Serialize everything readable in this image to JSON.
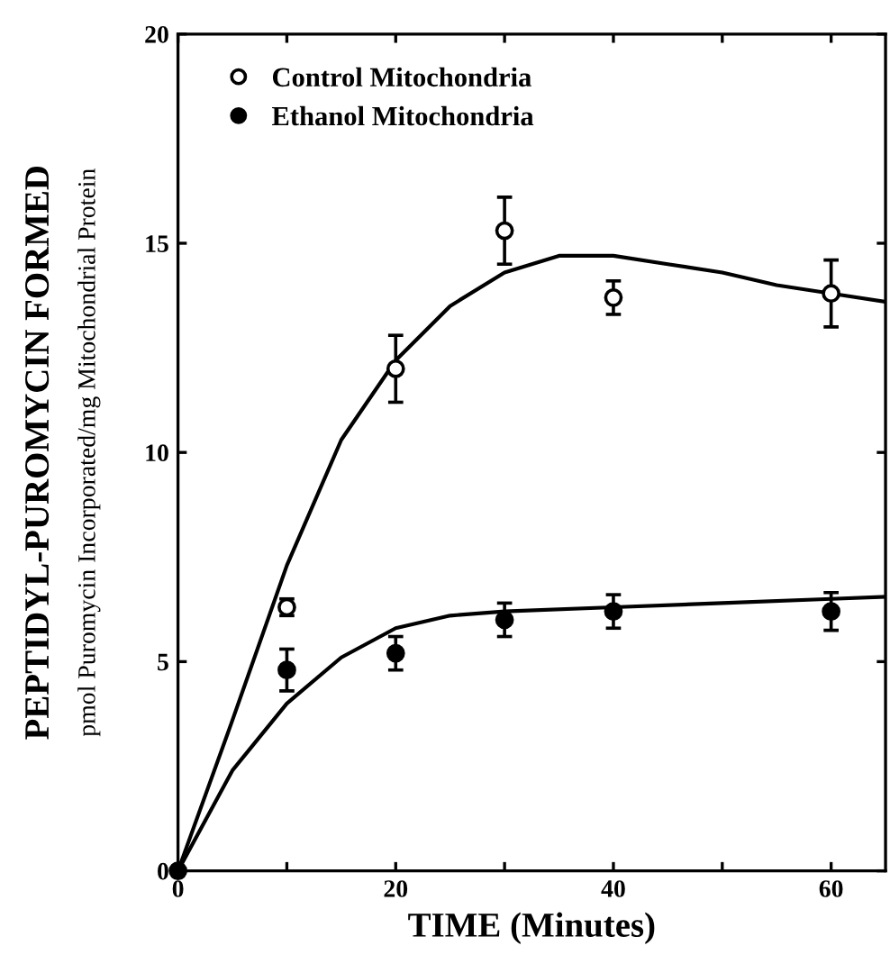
{
  "chart_data": {
    "type": "scatter",
    "xlabel": "TIME (Minutes)",
    "ylabel": "PEPTIDYL-PUROMYCIN FORMED\npmol Puromycin Incorporated/mg Mitochondrial Protein",
    "xlim": [
      0,
      65
    ],
    "ylim": [
      0,
      20
    ],
    "xticks": [
      0,
      {
        "value": 10,
        "label": null
      },
      20,
      {
        "value": 30,
        "label": null
      },
      40,
      {
        "value": 50,
        "label": null
      },
      60
    ],
    "yticks": [
      0,
      5,
      10,
      15,
      20
    ],
    "grid": false,
    "legend": "top left",
    "series": [
      {
        "name": "Control Mitochondria",
        "color": "#000000",
        "marker": "open circle",
        "x": [
          10,
          20,
          30,
          40,
          60
        ],
        "values": [
          6.3,
          12.0,
          15.3,
          13.7,
          13.8
        ],
        "errors": [
          0.2,
          0.8,
          0.8,
          0.4,
          0.8
        ]
      },
      {
        "name": "Ethanol Mitochondria",
        "color": "#000000",
        "marker": "circle",
        "x": [
          0,
          10,
          20,
          30,
          40,
          60
        ],
        "values": [
          0,
          4.8,
          5.2,
          6.0,
          6.2,
          6.2
        ],
        "errors": [
          null,
          0.5,
          0.4,
          0.4,
          0.4,
          0.45
        ]
      },
      {
        "type": "line",
        "color": "#000000",
        "x": [
          0,
          5,
          10,
          15,
          20,
          25,
          30,
          35,
          40,
          45,
          50,
          55,
          60,
          65
        ],
        "values": [
          0,
          3.6,
          7.3,
          10.3,
          12.2,
          13.5,
          14.3,
          14.7,
          14.7,
          14.5,
          14.3,
          14.0,
          13.8,
          13.6
        ]
      },
      {
        "type": "line",
        "color": "#000000",
        "x": [
          0,
          5,
          10,
          15,
          20,
          25,
          30,
          40,
          50,
          60,
          65
        ],
        "values": [
          0,
          2.4,
          4.0,
          5.1,
          5.8,
          6.1,
          6.2,
          6.3,
          6.4,
          6.5,
          6.55
        ]
      }
    ]
  }
}
